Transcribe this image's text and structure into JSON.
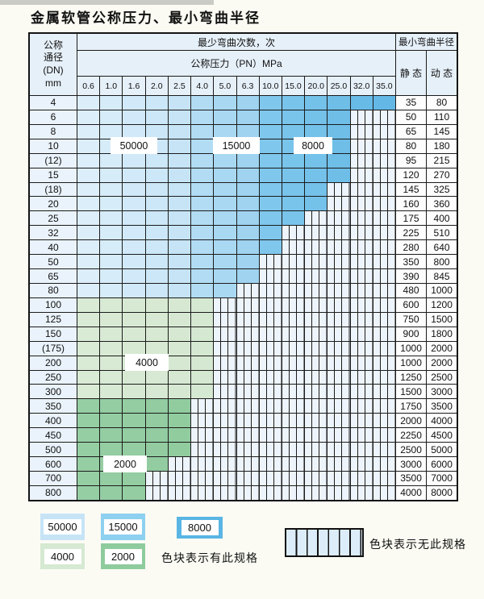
{
  "title": "金属软管公称压力、最小弯曲半径",
  "header": {
    "dn_lines": [
      "公称",
      "通径",
      "(DN)",
      "mm"
    ],
    "bend_count": "最少弯曲次数，次",
    "pressure_unit": "公称压力（PN）MPa",
    "radius": "最小弯曲半径",
    "static_label": "静 态",
    "dynamic_label": "动 态",
    "pressures": [
      "0.6",
      "1.0",
      "1.6",
      "2.0",
      "2.5",
      "4.0",
      "5.0",
      "6.3",
      "10.0",
      "15.0",
      "20.0",
      "25.0",
      "32.0",
      "35.0"
    ]
  },
  "chart_data": {
    "type": "table",
    "title": "金属软管公称压力、最小弯曲半径",
    "columns": [
      "公称通径(DN)mm",
      "0.6",
      "1.0",
      "1.6",
      "2.0",
      "2.5",
      "4.0",
      "5.0",
      "6.3",
      "10.0",
      "15.0",
      "20.0",
      "25.0",
      "32.0",
      "35.0",
      "静态",
      "动态"
    ],
    "zones": [
      {
        "bend_cycles": "50000",
        "dn_rows": "4–80",
        "pn_columns": "0.6–2.5",
        "style": "light-blue"
      },
      {
        "bend_cycles": "15000",
        "dn_rows": "4–80",
        "pn_columns": "4.0–6.3",
        "style": "medium-blue"
      },
      {
        "bend_cycles": "8000",
        "dn_rows": "4–80",
        "pn_columns": "10.0–35.0",
        "style": "dark-blue"
      },
      {
        "bend_cycles": "4000",
        "dn_rows": "100–300",
        "pn_columns": "0.6–4.0",
        "style": "light-green"
      },
      {
        "bend_cycles": "2000",
        "dn_rows": "350–800",
        "pn_columns": "0.6–2.5",
        "style": "dark-green"
      }
    ],
    "rows": [
      {
        "dn": "4",
        "last": "35.0",
        "zone": "blue",
        "static": "35",
        "dynamic": "80"
      },
      {
        "dn": "6",
        "last": "25.0",
        "zone": "blue",
        "static": "50",
        "dynamic": "110"
      },
      {
        "dn": "8",
        "last": "25.0",
        "zone": "blue",
        "static": "65",
        "dynamic": "145"
      },
      {
        "dn": "10",
        "last": "25.0",
        "zone": "blue",
        "static": "80",
        "dynamic": "180"
      },
      {
        "dn": "(12)",
        "last": "25.0",
        "zone": "blue",
        "static": "95",
        "dynamic": "215"
      },
      {
        "dn": "15",
        "last": "25.0",
        "zone": "blue",
        "static": "120",
        "dynamic": "270"
      },
      {
        "dn": "(18)",
        "last": "20.0",
        "zone": "blue",
        "static": "145",
        "dynamic": "325"
      },
      {
        "dn": "20",
        "last": "20.0",
        "zone": "blue",
        "static": "160",
        "dynamic": "360"
      },
      {
        "dn": "25",
        "last": "15.0",
        "zone": "blue",
        "static": "175",
        "dynamic": "400"
      },
      {
        "dn": "32",
        "last": "10.0",
        "zone": "blue",
        "static": "225",
        "dynamic": "510"
      },
      {
        "dn": "40",
        "last": "10.0",
        "zone": "blue",
        "static": "280",
        "dynamic": "640"
      },
      {
        "dn": "50",
        "last": "6.3",
        "zone": "blue",
        "static": "350",
        "dynamic": "800"
      },
      {
        "dn": "65",
        "last": "6.3",
        "zone": "blue",
        "static": "390",
        "dynamic": "845"
      },
      {
        "dn": "80",
        "last": "5.0",
        "zone": "blue",
        "static": "480",
        "dynamic": "1000"
      },
      {
        "dn": "100",
        "last": "4.0",
        "zone": "green4000",
        "static": "600",
        "dynamic": "1200"
      },
      {
        "dn": "125",
        "last": "4.0",
        "zone": "green4000",
        "static": "750",
        "dynamic": "1500"
      },
      {
        "dn": "150",
        "last": "4.0",
        "zone": "green4000",
        "static": "900",
        "dynamic": "1800"
      },
      {
        "dn": "(175)",
        "last": "4.0",
        "zone": "green4000",
        "static": "1000",
        "dynamic": "2000"
      },
      {
        "dn": "200",
        "last": "4.0",
        "zone": "green4000",
        "static": "1000",
        "dynamic": "2000"
      },
      {
        "dn": "250",
        "last": "4.0",
        "zone": "green4000",
        "static": "1250",
        "dynamic": "2500"
      },
      {
        "dn": "300",
        "last": "4.0",
        "zone": "green4000",
        "static": "1500",
        "dynamic": "3000"
      },
      {
        "dn": "350",
        "last": "2.5",
        "zone": "green2000",
        "static": "1750",
        "dynamic": "3500"
      },
      {
        "dn": "400",
        "last": "2.5",
        "zone": "green2000",
        "static": "2000",
        "dynamic": "4000"
      },
      {
        "dn": "450",
        "last": "2.5",
        "zone": "green2000",
        "static": "2250",
        "dynamic": "4500"
      },
      {
        "dn": "500",
        "last": "2.5",
        "zone": "green2000",
        "static": "2500",
        "dynamic": "5000"
      },
      {
        "dn": "600",
        "last": "2.0",
        "zone": "green2000",
        "static": "3000",
        "dynamic": "6000"
      },
      {
        "dn": "700",
        "last": "1.6",
        "zone": "green2000",
        "static": "3500",
        "dynamic": "7000"
      },
      {
        "dn": "800",
        "last": "1.6",
        "zone": "green2000",
        "static": "4000",
        "dynamic": "8000"
      }
    ]
  },
  "grid_labels": [
    "50000",
    "15000",
    "8000",
    "4000",
    "2000"
  ],
  "legend": {
    "chips": [
      {
        "label": "50000",
        "color": "#c7e4f6"
      },
      {
        "label": "15000",
        "color": "#8ed0f0"
      },
      {
        "label": "8000",
        "color": "#59b5e4"
      },
      {
        "label": "4000",
        "color": "#d6e9d2"
      },
      {
        "label": "2000",
        "color": "#8ecb9d"
      }
    ],
    "has_spec_note": "色块表示有此规格",
    "no_spec_note": "色块表示无此规格"
  },
  "colors": {
    "band_50000": [
      "#dceefa",
      "#c6e4f6"
    ],
    "band_15000": [
      "#b2dcf4",
      "#9fd3f0"
    ],
    "band_8000": [
      "#7fc7ec",
      "#63b8e6"
    ],
    "band_4000": [
      "#d9ead5",
      "#cfe4ca"
    ],
    "band_2000": [
      "#95cea3",
      "#88c697"
    ],
    "stripe_bg": "#edf4fb",
    "grid_line": "#1b1b1b"
  }
}
